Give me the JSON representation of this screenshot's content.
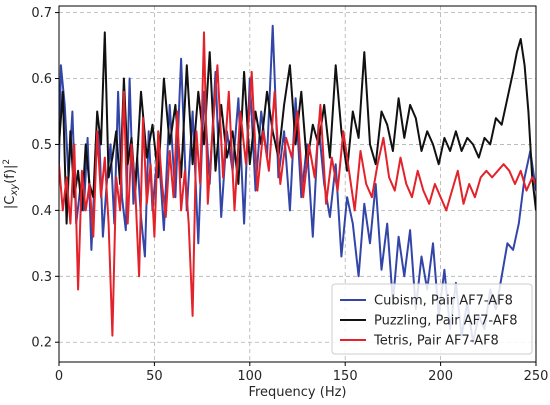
{
  "chart_data": {
    "type": "line",
    "title": "",
    "xlabel": "Frequency (Hz)",
    "ylabel": "|C_xy(f)|^2",
    "ylabel_parts": {
      "pre": "|C",
      "sub": "xy",
      "mid": "(f)|",
      "sup": "2"
    },
    "xlim": [
      0,
      250
    ],
    "ylim": [
      0.17,
      0.71
    ],
    "xticks": [
      0,
      50,
      100,
      150,
      200,
      250
    ],
    "xtick_labels": [
      "0",
      "50",
      "100",
      "150",
      "200",
      "250"
    ],
    "yticks": [
      0.2,
      0.3,
      0.4,
      0.5,
      0.6,
      0.7
    ],
    "ytick_labels": [
      "0.2",
      "0.3",
      "0.4",
      "0.5",
      "0.6",
      "0.7"
    ],
    "grid": true,
    "legend_position": "bottom-right",
    "series": [
      {
        "name": "Cubism, Pair AF7-AF8",
        "color": "#3346a8",
        "x": [
          0,
          1,
          2,
          3,
          5,
          7,
          9,
          11,
          13,
          15,
          17,
          19,
          21,
          23,
          25,
          27,
          29,
          31,
          33,
          35,
          37,
          39,
          41,
          43,
          45,
          47,
          49,
          52,
          55,
          58,
          61,
          64,
          67,
          70,
          73,
          76,
          79,
          82,
          85,
          88,
          91,
          94,
          97,
          100,
          103,
          106,
          109,
          112,
          115,
          118,
          121,
          124,
          127,
          130,
          133,
          136,
          139,
          142,
          145,
          148,
          151,
          154,
          157,
          160,
          163,
          166,
          169,
          172,
          175,
          178,
          181,
          184,
          187,
          190,
          193,
          196,
          199,
          202,
          205,
          208,
          211,
          214,
          217,
          220,
          223,
          226,
          229,
          232,
          235,
          238,
          241,
          244,
          247,
          250
        ],
        "y": [
          0.47,
          0.62,
          0.59,
          0.56,
          0.45,
          0.55,
          0.38,
          0.43,
          0.4,
          0.51,
          0.34,
          0.47,
          0.52,
          0.36,
          0.44,
          0.5,
          0.38,
          0.58,
          0.42,
          0.37,
          0.6,
          0.41,
          0.48,
          0.39,
          0.33,
          0.52,
          0.4,
          0.5,
          0.37,
          0.56,
          0.42,
          0.63,
          0.4,
          0.55,
          0.35,
          0.58,
          0.44,
          0.61,
          0.39,
          0.52,
          0.46,
          0.57,
          0.38,
          0.6,
          0.43,
          0.55,
          0.48,
          0.68,
          0.45,
          0.52,
          0.4,
          0.57,
          0.42,
          0.5,
          0.36,
          0.53,
          0.44,
          0.39,
          0.47,
          0.33,
          0.42,
          0.38,
          0.3,
          0.41,
          0.35,
          0.44,
          0.31,
          0.38,
          0.26,
          0.36,
          0.3,
          0.37,
          0.25,
          0.33,
          0.28,
          0.35,
          0.24,
          0.31,
          0.22,
          0.29,
          0.21,
          0.26,
          0.2,
          0.24,
          0.22,
          0.28,
          0.25,
          0.3,
          0.35,
          0.34,
          0.38,
          0.45,
          0.49,
          0.43
        ]
      },
      {
        "name": "Puzzling, Pair AF7-AF8",
        "color": "#111111",
        "x": [
          0,
          2,
          4,
          6,
          8,
          10,
          12,
          14,
          16,
          18,
          20,
          22,
          24,
          26,
          28,
          30,
          32,
          34,
          36,
          38,
          40,
          43,
          46,
          49,
          52,
          55,
          58,
          61,
          64,
          67,
          70,
          73,
          76,
          79,
          82,
          85,
          88,
          91,
          94,
          97,
          100,
          103,
          106,
          109,
          112,
          115,
          118,
          121,
          124,
          127,
          130,
          133,
          136,
          139,
          142,
          145,
          148,
          151,
          154,
          157,
          160,
          163,
          166,
          169,
          172,
          175,
          178,
          181,
          184,
          187,
          190,
          193,
          196,
          199,
          202,
          205,
          208,
          211,
          214,
          217,
          220,
          223,
          226,
          229,
          232,
          235,
          238,
          240,
          242,
          244,
          246,
          248,
          250
        ],
        "y": [
          0.5,
          0.58,
          0.38,
          0.52,
          0.42,
          0.46,
          0.4,
          0.5,
          0.44,
          0.42,
          0.55,
          0.5,
          0.67,
          0.45,
          0.48,
          0.52,
          0.44,
          0.6,
          0.47,
          0.51,
          0.43,
          0.58,
          0.48,
          0.53,
          0.45,
          0.6,
          0.5,
          0.56,
          0.45,
          0.62,
          0.47,
          0.58,
          0.5,
          0.64,
          0.46,
          0.56,
          0.48,
          0.52,
          0.44,
          0.61,
          0.47,
          0.55,
          0.5,
          0.58,
          0.52,
          0.48,
          0.56,
          0.62,
          0.5,
          0.58,
          0.47,
          0.53,
          0.5,
          0.56,
          0.48,
          0.62,
          0.52,
          0.46,
          0.55,
          0.51,
          0.64,
          0.5,
          0.47,
          0.55,
          0.53,
          0.49,
          0.57,
          0.51,
          0.56,
          0.54,
          0.49,
          0.52,
          0.5,
          0.47,
          0.51,
          0.49,
          0.52,
          0.49,
          0.51,
          0.5,
          0.48,
          0.51,
          0.5,
          0.54,
          0.53,
          0.57,
          0.61,
          0.64,
          0.66,
          0.62,
          0.55,
          0.45,
          0.4
        ]
      },
      {
        "name": "Tetris, Pair AF7-AF8",
        "color": "#e3232b",
        "x": [
          0,
          2,
          4,
          6,
          8,
          10,
          12,
          14,
          16,
          18,
          20,
          22,
          24,
          26,
          28,
          30,
          32,
          34,
          36,
          38,
          40,
          42,
          44,
          46,
          48,
          50,
          52,
          54,
          56,
          58,
          60,
          62,
          64,
          66,
          68,
          70,
          72,
          74,
          76,
          78,
          80,
          83,
          86,
          89,
          92,
          95,
          98,
          101,
          104,
          107,
          110,
          113,
          116,
          119,
          122,
          125,
          128,
          131,
          134,
          137,
          140,
          143,
          146,
          149,
          152,
          155,
          158,
          161,
          164,
          167,
          170,
          173,
          176,
          179,
          182,
          185,
          188,
          191,
          194,
          197,
          200,
          203,
          206,
          209,
          212,
          215,
          218,
          221,
          224,
          227,
          230,
          233,
          236,
          239,
          242,
          245,
          248,
          250
        ],
        "y": [
          0.47,
          0.4,
          0.45,
          0.38,
          0.5,
          0.28,
          0.46,
          0.4,
          0.44,
          0.36,
          0.52,
          0.42,
          0.48,
          0.38,
          0.21,
          0.45,
          0.4,
          0.58,
          0.38,
          0.5,
          0.43,
          0.3,
          0.54,
          0.41,
          0.47,
          0.36,
          0.52,
          0.44,
          0.39,
          0.49,
          0.42,
          0.55,
          0.4,
          0.46,
          0.38,
          0.24,
          0.52,
          0.44,
          0.67,
          0.41,
          0.5,
          0.62,
          0.45,
          0.58,
          0.4,
          0.55,
          0.47,
          0.61,
          0.43,
          0.52,
          0.46,
          0.58,
          0.44,
          0.51,
          0.48,
          0.55,
          0.42,
          0.5,
          0.45,
          0.56,
          0.41,
          0.48,
          0.43,
          0.52,
          0.46,
          0.4,
          0.49,
          0.44,
          0.42,
          0.47,
          0.51,
          0.45,
          0.43,
          0.48,
          0.44,
          0.42,
          0.46,
          0.43,
          0.41,
          0.44,
          0.42,
          0.4,
          0.43,
          0.46,
          0.41,
          0.44,
          0.42,
          0.45,
          0.46,
          0.45,
          0.46,
          0.47,
          0.46,
          0.44,
          0.46,
          0.43,
          0.45,
          0.44
        ]
      }
    ]
  }
}
